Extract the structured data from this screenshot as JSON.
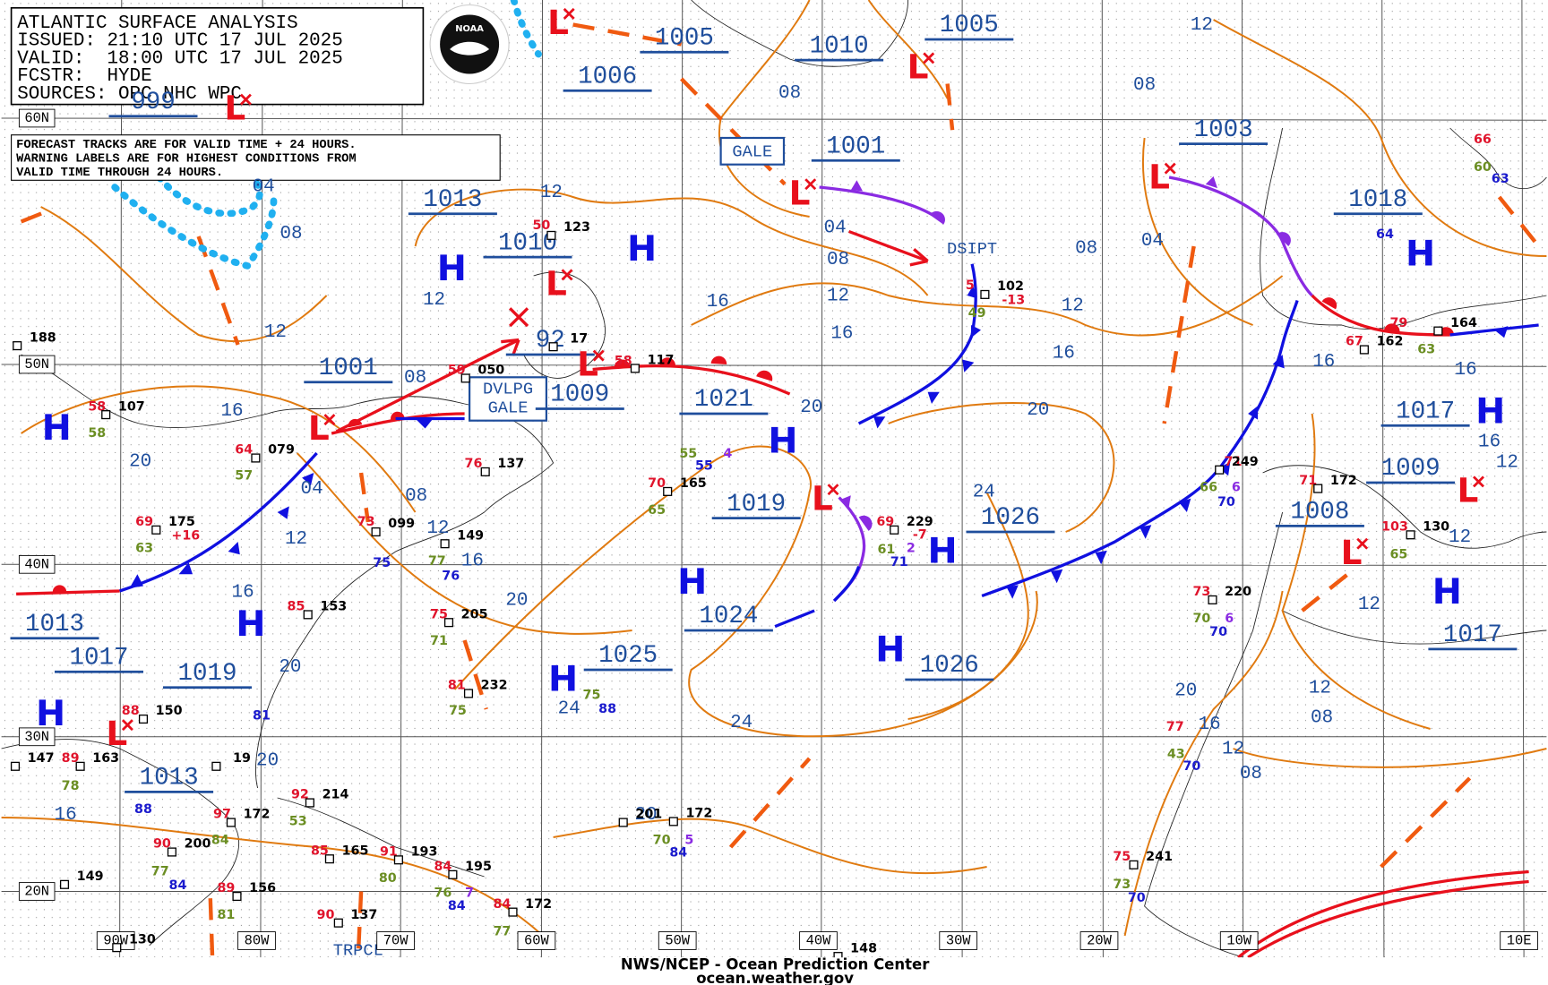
{
  "header": {
    "title": "ATLANTIC SURFACE ANALYSIS",
    "lines": [
      "ISSUED: 21:10 UTC 17 JUL 2025",
      "VALID:  18:00 UTC 17 JUL 2025",
      "FCSTR:  HYDE",
      "SOURCES: OPC NHC WPC"
    ],
    "logo": "NOAA"
  },
  "note": [
    "FORECAST TRACKS ARE FOR VALID TIME + 24 HOURS.",
    "WARNING LABELS ARE FOR HIGHEST CONDITIONS FROM",
    "VALID TIME THROUGH 24 HOURS."
  ],
  "latitudes": [
    "60N",
    "50N",
    "40N",
    "30N",
    "20N"
  ],
  "longitudes": [
    "90W",
    "80W",
    "70W",
    "60W",
    "50W",
    "40W",
    "30W",
    "20W",
    "10W",
    "10E"
  ],
  "symbols": {
    "high": "H",
    "low": "L"
  },
  "pressure_centers": [
    "1005",
    "1006",
    "1010",
    "1005",
    "999",
    "1001",
    "1003",
    "1013",
    "1010",
    "1018",
    "92",
    "1001",
    "1009",
    "1021",
    "1017",
    "1009",
    "1019",
    "1026",
    "1008",
    "1013",
    "1024",
    "1025",
    "1017",
    "1017",
    "1019",
    "1026",
    "1013"
  ],
  "isobar_labels": [
    "12",
    "08",
    "08",
    "12",
    "04",
    "08",
    "04",
    "08",
    "04",
    "08",
    "12",
    "12",
    "12",
    "12",
    "16",
    "16",
    "16",
    "16",
    "16",
    "16",
    "20",
    "20",
    "20",
    "08",
    "04",
    "08",
    "12",
    "12",
    "16",
    "16",
    "20",
    "24",
    "20",
    "24",
    "24",
    "20",
    "12",
    "08",
    "16",
    "12",
    "08",
    "16",
    "20",
    "20",
    "12",
    "12",
    "12",
    "16"
  ],
  "warnings": {
    "gale": "GALE",
    "developing": [
      "DVLPG",
      "GALE"
    ],
    "dissipating": "DSIPT",
    "tropical": "TRPCL"
  },
  "station_labels": [
    "188",
    "58",
    "107",
    "58",
    "64",
    "079",
    "57",
    "69",
    "175",
    "63",
    "+16",
    "59",
    "050",
    "123",
    "50",
    "117",
    "58",
    "17",
    "73",
    "099",
    "75",
    "149",
    "77",
    "76",
    "85",
    "153",
    "75",
    "205",
    "71",
    "81",
    "232",
    "75",
    "137",
    "76",
    "70",
    "165",
    "65",
    "55",
    "55",
    "4",
    "69",
    "229",
    "-7",
    "61",
    "2",
    "71",
    "102",
    "-13",
    "49",
    "5",
    "71",
    "249",
    "66",
    "6",
    "70",
    "71",
    "172",
    "67",
    "162",
    "63",
    "79",
    "164",
    "64",
    "66",
    "60",
    "63",
    "103",
    "130",
    "65",
    "73",
    "220",
    "70",
    "6",
    "70",
    "77",
    "43",
    "70",
    "75",
    "241",
    "73",
    "70",
    "88",
    "150",
    "89",
    "163",
    "147",
    "78",
    "88",
    "97",
    "172",
    "92",
    "214",
    "53",
    "85",
    "165",
    "91",
    "193",
    "80",
    "90",
    "200",
    "84",
    "77",
    "84",
    "89",
    "156",
    "81",
    "149",
    "84",
    "195",
    "76",
    "84",
    "7",
    "84",
    "172",
    "77",
    "90",
    "137",
    "130",
    "148",
    "201",
    "172",
    "70",
    "5",
    "84",
    "75",
    "88",
    "81",
    "19"
  ],
  "footer": {
    "line1": "NWS/NCEP - Ocean Prediction Center",
    "line2": "ocean.weather.gov"
  }
}
